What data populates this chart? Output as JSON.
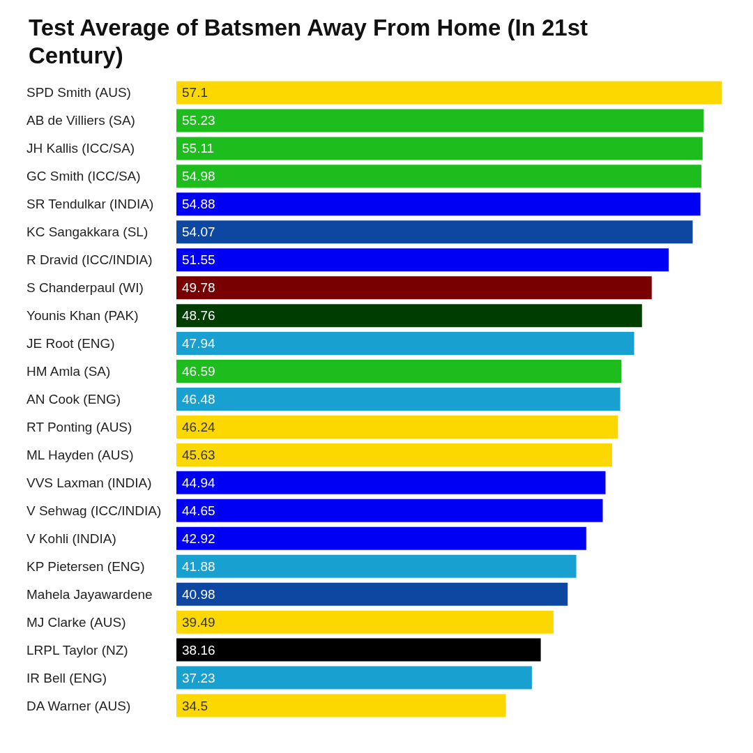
{
  "chart_data": {
    "type": "bar",
    "orientation": "horizontal",
    "title": "Test Average of Batsmen Away From Home (In 21st Century)",
    "categories": [
      "SPD Smith (AUS)",
      "AB de Villiers (SA)",
      "JH Kallis (ICC/SA)",
      "GC Smith (ICC/SA)",
      "SR Tendulkar (INDIA)",
      "KC Sangakkara (SL)",
      "R Dravid (ICC/INDIA)",
      "S Chanderpaul (WI)",
      "Younis Khan (PAK)",
      "JE Root (ENG)",
      "HM Amla (SA)",
      "AN Cook (ENG)",
      "RT Ponting (AUS)",
      "ML Hayden (AUS)",
      "VVS Laxman (INDIA)",
      "V Sehwag (ICC/INDIA)",
      "V Kohli (INDIA)",
      "KP Pietersen (ENG)",
      "Mahela Jayawardene",
      "MJ Clarke (AUS)",
      "LRPL Taylor (NZ)",
      "IR Bell (ENG)",
      "DA Warner (AUS)"
    ],
    "values": [
      57.1,
      55.23,
      55.11,
      54.98,
      54.88,
      54.07,
      51.55,
      49.78,
      48.76,
      47.94,
      46.59,
      46.48,
      46.24,
      45.63,
      44.94,
      44.65,
      42.92,
      41.88,
      40.98,
      39.49,
      38.16,
      37.23,
      34.5
    ],
    "colors": [
      "#fcd700",
      "#1cbd1c",
      "#1cbd1c",
      "#1cbd1c",
      "#0000f5",
      "#0d47a1",
      "#0000f5",
      "#780000",
      "#003d00",
      "#18a0d0",
      "#1cbd1c",
      "#18a0d0",
      "#fcd700",
      "#fcd700",
      "#0000f5",
      "#0000f5",
      "#0000f5",
      "#18a0d0",
      "#0d47a1",
      "#fcd700",
      "#000000",
      "#18a0d0",
      "#fcd700"
    ],
    "xlim": [
      0,
      57.1
    ],
    "data_labels": true,
    "tick_labels": "y"
  }
}
